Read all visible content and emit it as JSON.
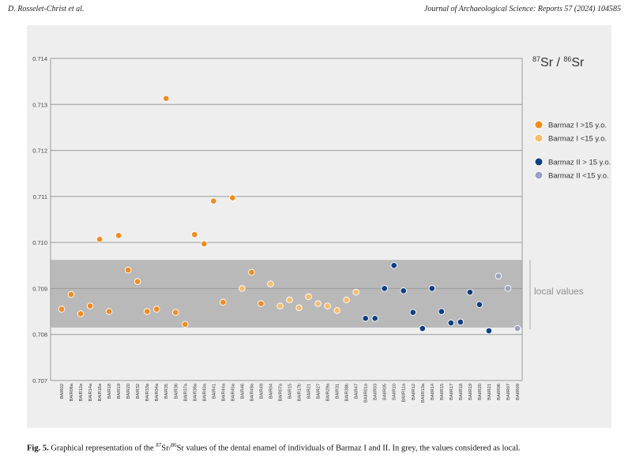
{
  "header": {
    "left": "D. Rosselet-Christ et al.",
    "right": "Journal of Archaeological Science: Reports 57 (2024) 104585"
  },
  "caption": {
    "label": "Fig. 5.",
    "text_before": " Graphical representation of the ",
    "sup1": "87",
    "mid1": "Sr/",
    "sup2": "86",
    "text_after": "Sr values of the dental enamel of individuals of Barmaz I and II. In grey, the values considered as local."
  },
  "colors": {
    "barmaz1_adult": "#f28c1e",
    "barmaz1_child": "#f6bd6e",
    "barmaz2_adult": "#0f3f84",
    "barmaz2_child": "#9aa3c5",
    "local_band": "#b9b9b9",
    "grid": "#9a9a9a"
  },
  "chart_data": {
    "type": "scatter",
    "title": "87Sr / 86Sr",
    "title_parts": {
      "sup1": "87",
      "a": "Sr / ",
      "sup2": "86",
      "b": "Sr"
    },
    "ylim": [
      0.707,
      0.714
    ],
    "yticks": [
      "0.707",
      "0.708",
      "0.709",
      "0.710",
      "0.711",
      "0.712",
      "0.713",
      "0.714"
    ],
    "ytick_values": [
      0.707,
      0.708,
      0.709,
      0.71,
      0.711,
      0.712,
      0.713,
      0.714
    ],
    "local_band": {
      "label": "local values",
      "min": 0.70815,
      "max": 0.70962
    },
    "legend_position": "right",
    "series": [
      {
        "name": "Barmaz I >15 y.o.",
        "color": "#f28c1e"
      },
      {
        "name": "Barmaz I <15 y.o.",
        "color": "#f6bd6e"
      },
      {
        "name": "Barmaz II > 15 y.o.",
        "color": "#0f3f84"
      },
      {
        "name": "Barmaz II <15 y.o.",
        "color": "#9aa3c5"
      }
    ],
    "points": [
      {
        "x": "BAIR02",
        "y": 0.70855,
        "series": 0
      },
      {
        "x": "BAIR06a",
        "y": 0.70887,
        "series": 0
      },
      {
        "x": "BAIR12a",
        "y": 0.70845,
        "series": 0
      },
      {
        "x": "BAIR14a",
        "y": 0.70862,
        "series": 0
      },
      {
        "x": "BAIR16a",
        "y": 0.71007,
        "series": 0
      },
      {
        "x": "BAIR18",
        "y": 0.7085,
        "series": 0
      },
      {
        "x": "BAIR19",
        "y": 0.71015,
        "series": 0
      },
      {
        "x": "BAIR20",
        "y": 0.7094,
        "series": 0
      },
      {
        "x": "BAIR32",
        "y": 0.70915,
        "series": 0
      },
      {
        "x": "BAIR33a",
        "y": 0.7085,
        "series": 0
      },
      {
        "x": "BAIR34a",
        "y": 0.70855,
        "series": 0
      },
      {
        "x": "BAIR35",
        "y": 0.71313,
        "series": 0
      },
      {
        "x": "BAIR36",
        "y": 0.70848,
        "series": 0
      },
      {
        "x": "BAIR37a",
        "y": 0.70822,
        "series": 0
      },
      {
        "x": "BAIR38a",
        "y": 0.71017,
        "series": 0
      },
      {
        "x": "BAIR40a",
        "y": 0.70997,
        "series": 0
      },
      {
        "x": "BAIR41",
        "y": 0.7109,
        "series": 0
      },
      {
        "x": "BAIR44a",
        "y": 0.7087,
        "series": 0
      },
      {
        "x": "BAIR45a",
        "y": 0.71097,
        "series": 0
      },
      {
        "x": "BAIR46",
        "y": 0.709,
        "series": 1
      },
      {
        "x": "BAIR48a",
        "y": 0.70935,
        "series": 0
      },
      {
        "x": "BAIR49",
        "y": 0.70867,
        "series": 0
      },
      {
        "x": "BAIR04",
        "y": 0.7091,
        "series": 1
      },
      {
        "x": "BAIR07a",
        "y": 0.70862,
        "series": 1
      },
      {
        "x": "BAIR15",
        "y": 0.70875,
        "series": 1
      },
      {
        "x": "BAIR17b",
        "y": 0.70858,
        "series": 1
      },
      {
        "x": "BAIR21",
        "y": 0.70882,
        "series": 1
      },
      {
        "x": "BAIR27",
        "y": 0.70867,
        "series": 1
      },
      {
        "x": "BAIR29a",
        "y": 0.70862,
        "series": 1
      },
      {
        "x": "BAIR31",
        "y": 0.70852,
        "series": 1
      },
      {
        "x": "BAIR38b",
        "y": 0.70875,
        "series": 1
      },
      {
        "x": "BAIR47",
        "y": 0.70892,
        "series": 1
      },
      {
        "x": "BAIIR01a",
        "y": 0.70835,
        "series": 2
      },
      {
        "x": "BAIIR03",
        "y": 0.70835,
        "series": 2
      },
      {
        "x": "BAIIR05",
        "y": 0.709,
        "series": 2
      },
      {
        "x": "BAIIR10",
        "y": 0.7095,
        "series": 2
      },
      {
        "x": "BAIIR11a",
        "y": 0.70895,
        "series": 2
      },
      {
        "x": "BAIIR12",
        "y": 0.70848,
        "series": 2
      },
      {
        "x": "BAIIR13a",
        "y": 0.70813,
        "series": 2
      },
      {
        "x": "BAIIR14",
        "y": 0.709,
        "series": 2
      },
      {
        "x": "BAIIR15",
        "y": 0.7085,
        "series": 2
      },
      {
        "x": "BAIIR17",
        "y": 0.70825,
        "series": 2
      },
      {
        "x": "BAIIR18",
        "y": 0.70827,
        "series": 2
      },
      {
        "x": "BAIIR19",
        "y": 0.70892,
        "series": 2
      },
      {
        "x": "BAIIR20",
        "y": 0.70865,
        "series": 2
      },
      {
        "x": "BAIIR21",
        "y": 0.70808,
        "series": 2
      },
      {
        "x": "BAIIR06",
        "y": 0.70927,
        "series": 3
      },
      {
        "x": "BAIIR07",
        "y": 0.709,
        "series": 3
      },
      {
        "x": "BAIIR09",
        "y": 0.70813,
        "series": 3
      }
    ]
  }
}
